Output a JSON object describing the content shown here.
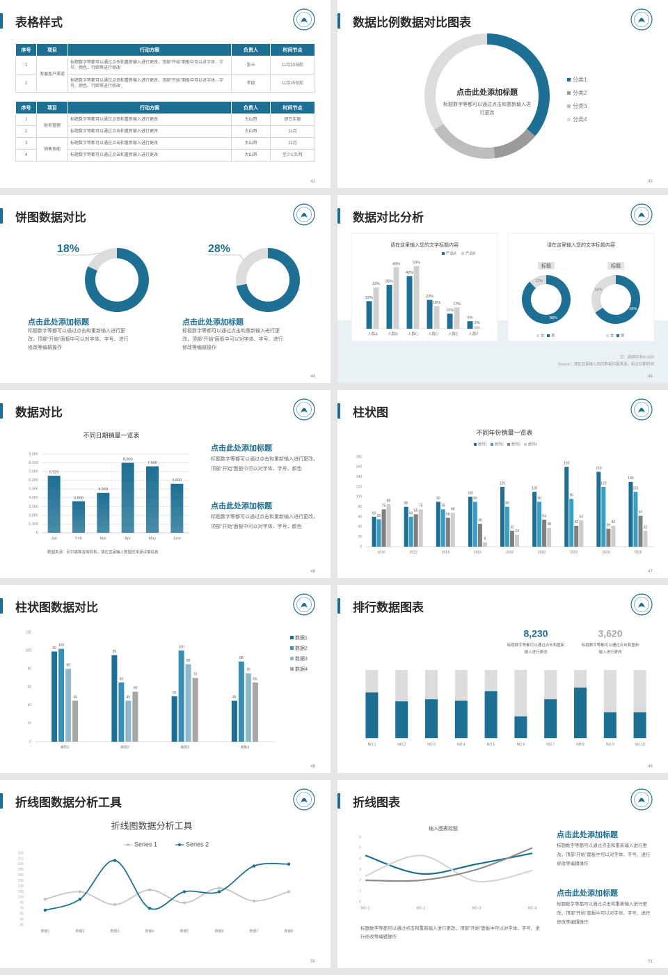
{
  "slides": [
    {
      "title": "表格样式",
      "page": 42,
      "tables": [
        {
          "header": [
            "序号",
            "项目",
            "行动方案",
            "负责人",
            "时间节点"
          ],
          "groups": [
            {
              "item": "发展客户渠道",
              "rows": [
                [
                  "1",
                  "标题数字等都可以通过点击和重新输入进行更改，顶部“开始”面板中可以对字体、字号、颜色、行距等进行修改",
                  "张三",
                  "11月30日前"
                ],
                [
                  "2",
                  "标题数字等都可以通过点击和重新输入进行更改，顶部“开始”面板中可以对字体、字号、颜色、行距等进行修改",
                  "李四",
                  "11月15日前"
                ]
              ]
            }
          ]
        },
        {
          "header": [
            "序号",
            "项目",
            "行动方案",
            "负责人",
            "时间节点"
          ],
          "groups": [
            {
              "item": "财务管理",
              "rows": [
                [
                  "1",
                  "标题数字等都可以通过点击和重新输入进行更改",
                  "大山哥",
                  "即日实施"
                ],
                [
                  "2",
                  "标题数字等都可以通过点击和重新输入进行更改",
                  "大山哥",
                  "11月"
                ]
              ]
            },
            {
              "item": "销售技能",
              "rows": [
                [
                  "3",
                  "标题数字等都可以通过点击和重新输入进行更改",
                  "大山哥",
                  "11月"
                ],
                [
                  "4",
                  "标题数字等都可以通过点击和重新输入进行更改",
                  "大山哥",
                  "至少1次/月"
                ]
              ]
            }
          ]
        }
      ]
    },
    {
      "title": "数据比例数据对比图表",
      "page": 43,
      "chart": {
        "type": "donut",
        "heading": "点击此处添加标题",
        "text": "标题数字等都可以通过点击和重新输入进行更改",
        "categories": [
          "分类1",
          "分类2",
          "分类3",
          "分类4"
        ],
        "values": [
          36,
          12,
          18,
          34
        ],
        "colors": [
          "#1d6f94",
          "#9a9a9a",
          "#bdbdbd",
          "#dcdcdc"
        ]
      }
    },
    {
      "title": "饼图数据对比",
      "page": 44,
      "charts": [
        {
          "type": "donut",
          "values": [
            18
          ],
          "value_labels": [
            "18%"
          ],
          "colors": [
            "#dcdcdc",
            "#1d6f94"
          ],
          "heading": "点击此处添加标题",
          "text": "标题数字等都可以通过点击和重新输入进行更改，顶部“开始”面板中可以对字体、字号、进行修改等编辑操作"
        },
        {
          "type": "donut",
          "values": [
            28
          ],
          "value_labels": [
            "28%"
          ],
          "colors": [
            "#dcdcdc",
            "#1d6f94"
          ],
          "heading": "点击此处添加标题",
          "text": "标题数字等都可以通过点击和重新输入进行更改，顶部“开始”面板中可以对字体、字号、进行修改等编辑操作"
        }
      ]
    },
    {
      "title": "数据对比分析",
      "page": 45,
      "charts": [
        {
          "type": "bar",
          "title": "请在这里输入您的文字标题内容",
          "categories": [
            "人群A",
            "人群B",
            "人群C",
            "人群D",
            "人群E",
            "人群F"
          ],
          "series": [
            {
              "name": "产品A",
              "color": "#1d6f94",
              "values": [
                22,
                35,
                42,
                23,
                12,
                6
              ],
              "value_labels": [
                "22%",
                "35%",
                "42%",
                "23%",
                "12%",
                "6%"
              ]
            },
            {
              "name": "产品B",
              "color": "#d0d0d0",
              "values": [
                33,
                49,
                50,
                18,
                17,
                2
              ],
              "value_labels": [
                "33%",
                "49%",
                "50%",
                "18%",
                "17%",
                "2%"
              ]
            }
          ]
        },
        {
          "type": "donut",
          "title": "请在这里输入您的文字标题内容",
          "categories": [
            "女",
            "男"
          ],
          "colors": [
            "#dcdcdc",
            "#1d6f94"
          ],
          "donuts": [
            {
              "label": "标题",
              "values": [
                12,
                88
              ],
              "value_labels": [
                "12%",
                "88%"
              ]
            },
            {
              "label": "标题",
              "values": [
                34,
                66
              ],
              "value_labels": [
                "34%",
                "66%"
              ]
            }
          ]
        }
      ],
      "notes": [
        "注：调研样本N=500",
        "Source：请在这里输入您的数据作图来源，标注日期时间"
      ]
    },
    {
      "title": "数据对比",
      "page": 46,
      "chart": {
        "type": "bar",
        "title": "不同日期销量一览表",
        "categories": [
          "Jan",
          "Feb",
          "Mar",
          "Apr",
          "May",
          "June"
        ],
        "values": [
          6520,
          3600,
          4560,
          8000,
          7600,
          5600
        ],
        "value_labels": [
          "6,520",
          "3,600",
          "4,560",
          "8,000",
          "7,600",
          "5,600"
        ],
        "color": "#1d6f94",
        "ylim": [
          0,
          9000
        ],
        "yticks": [
          0,
          {
            "value": 1000,
            "label": "1,000"
          },
          {
            "value": 2000,
            "label": "2,000"
          },
          {
            "value": 3000,
            "label": "3,000"
          },
          {
            "value": 4000,
            "label": "4,000"
          },
          {
            "value": 5000,
            "label": "5,000"
          },
          {
            "value": 6000,
            "label": "6,000"
          },
          {
            "value": 7000,
            "label": "7,000"
          },
          {
            "value": 8000,
            "label": "8,000"
          },
          {
            "value": 9000,
            "label": "9,000"
          }
        ],
        "grid": true,
        "note": "数据来源：尼尔森等咨询机构，请在这里输入数据的来源详情信息"
      },
      "blocks": [
        {
          "heading": "点击此处添加标题",
          "text": "标题数字等都可以通过点击和重新输入进行更改，顶部“开始”面板中可以对字体、字号、颜色"
        },
        {
          "heading": "点击此处添加标题",
          "text": "标题数字等都可以通过点击和重新输入进行更改，顶部“开始”面板中可以对字体、字号、颜色"
        }
      ]
    },
    {
      "title": "柱状图",
      "page": 47,
      "chart": {
        "type": "bar",
        "title": "不同年份销量一览表",
        "categories": [
          "2010",
          "2012",
          "2014",
          "2016",
          "2018",
          "2020",
          "2022",
          "2024",
          "2026"
        ],
        "series": [
          {
            "name": "数列1",
            "color": "#1d6f94",
            "values": [
              60,
              80,
              90,
              100,
              120,
              110,
              160,
              150,
              130
            ]
          },
          {
            "name": "数列2",
            "color": "#3a9ec4",
            "values": [
              55,
              60,
              75,
              90,
              80,
              90,
              96,
              120,
              110
            ]
          },
          {
            "name": "数列3",
            "color": "#7f7f7f",
            "values": [
              75,
              65,
              58,
              46,
              32,
              54,
              42,
              36,
              62
            ]
          },
          {
            "name": "数列4",
            "color": "#cccccc",
            "values": [
              85,
              75,
              68,
              9,
              24,
              38,
              53,
              42,
              32
            ]
          }
        ],
        "ylim": [
          0,
          180
        ],
        "yticks": [
          0,
          20,
          40,
          60,
          80,
          100,
          120,
          140,
          160,
          180
        ],
        "grid": false
      }
    },
    {
      "title": "柱状图数据对比",
      "page": 48,
      "chart": {
        "type": "bar",
        "categories": [
          "类别1",
          "类别2",
          "类别3",
          "类别4"
        ],
        "series": [
          {
            "name": "数据1",
            "color": "#1d6f94",
            "values": [
              99,
              95,
              50,
              45
            ]
          },
          {
            "name": "数据2",
            "color": "#3a8fb7",
            "values": [
              102,
              65,
              100,
              88
            ]
          },
          {
            "name": "数据3",
            "color": "#8fb8cc",
            "values": [
              80,
              45,
              85,
              75
            ]
          },
          {
            "name": "数据4",
            "color": "#a6a6a6",
            "values": [
              45,
              55,
              70,
              65
            ]
          }
        ],
        "ylim": [
          0,
          120
        ],
        "yticks": [
          0,
          20,
          40,
          60,
          80,
          100,
          120
        ],
        "grid": false
      }
    },
    {
      "title": "排行数据图表",
      "page": 49,
      "highlights": [
        {
          "value": "8,230",
          "text": "标题数字等都可以通过点击和重新输入进行更改"
        },
        {
          "value": "3,620",
          "text": "标题数字等都可以通过点击和重新输入进行更改"
        }
      ],
      "chart": {
        "type": "share",
        "categories": [
          "NO.1",
          "NO.2",
          "NO.3",
          "NO.4",
          "NO.5",
          "NO.6",
          "NO.7",
          "NO.8",
          "NO.9",
          "NO.10"
        ],
        "values": [
          67,
          54,
          57,
          55,
          69,
          32,
          57,
          74,
          38,
          38
        ],
        "colors": [
          "#1d6f94",
          "#dcdcdc"
        ]
      }
    },
    {
      "title": "折线图数据分析工具",
      "page": 50,
      "chart": {
        "type": "line",
        "title": "折线图数据分析工具",
        "categories": [
          "数据1",
          "数据2",
          "数据3",
          "数据4",
          "数据5",
          "数据6",
          "数据7",
          "数据8"
        ],
        "series": [
          {
            "name": "Series 1",
            "color": "#c4c4c4",
            "values": [
              100,
              120,
              85,
              125,
              90,
              130,
              95,
              120
            ]
          },
          {
            "name": "Series 2",
            "color": "#1d6f94",
            "values": [
              70,
              100,
              205,
              75,
              120,
              120,
              190,
              195
            ]
          }
        ],
        "ylim": [
          30,
          225
        ],
        "yticks": [
          30,
          45,
          60,
          75,
          90,
          105,
          120,
          135,
          150,
          165,
          180,
          195,
          210,
          225
        ],
        "grid": false,
        "smooth": true
      }
    },
    {
      "title": "折线图表",
      "page": 51,
      "chart": {
        "type": "line",
        "title": "输入图表标题",
        "categories": [
          "NO.1",
          "NO.2",
          "NO.3",
          "NO.4"
        ],
        "series": [
          {
            "color": "#1d6f94",
            "values": [
              4.3,
              2.6,
              3.5,
              4.5
            ]
          },
          {
            "color": "#d4d4d4",
            "values": [
              2.4,
              4.3,
              1.9,
              2.9
            ]
          },
          {
            "color": "#8c8c8c",
            "values": [
              2,
              2,
              3,
              5
            ]
          }
        ],
        "ylim": [
          0,
          6
        ],
        "yticks": [
          0,
          1,
          2,
          3,
          4,
          5,
          6
        ],
        "grid": false,
        "smooth": true
      },
      "blocks": [
        {
          "heading": "点击此处添加标题",
          "text": "标题数字等都可以通过点击和重新输入进行更改，顶部“开始”面板中可以对字体、字号、进行修改等编辑操作"
        },
        {
          "heading": "点击此处添加标题",
          "text": "标题数字等都可以通过点击和重新输入进行更改，顶部“开始”面板中可以对字体、字号、进行修改等编辑操作"
        }
      ],
      "text": "标题数字等都可以通过点击和重新输入进行更改，顶部“开始”面板中可以对字体、字号、进行修改等编辑操作"
    }
  ]
}
